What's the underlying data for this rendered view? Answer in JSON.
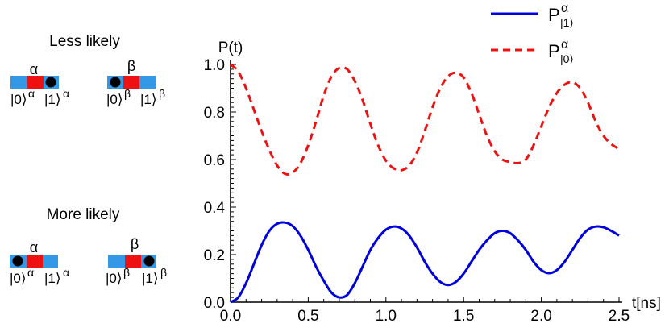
{
  "left_panel": {
    "less_likely": {
      "label": "Less likely",
      "alpha_diagram": {
        "greek": "α",
        "state0": "|0⟩",
        "state1": "|1⟩",
        "sup": "α",
        "ball_on": "1"
      },
      "beta_diagram": {
        "greek": "β",
        "state0": "|0⟩",
        "state1": "|1⟩",
        "sup": "β",
        "ball_on": "0"
      }
    },
    "more_likely": {
      "label": "More likely",
      "alpha_diagram": {
        "greek": "α",
        "state0": "|0⟩",
        "state1": "|1⟩",
        "sup": "α",
        "ball_on": "0"
      },
      "beta_diagram": {
        "greek": "β",
        "state0": "|0⟩",
        "state1": "|1⟩",
        "sup": "β",
        "ball_on": "1"
      }
    },
    "colors": {
      "wire": "#3399e6",
      "site": "#ee1111",
      "ball": "#000000"
    }
  },
  "chart_data": {
    "type": "line",
    "ylabel": "P(t)",
    "xlabel": "t[ns]",
    "xlim": [
      0,
      2.5
    ],
    "ylim": [
      0,
      1.0
    ],
    "x_ticks": [
      "0.0",
      "0.5",
      "1.0",
      "1.5",
      "2.0",
      "2.5"
    ],
    "x_tick_values": [
      0,
      0.5,
      1.0,
      1.5,
      2.0,
      2.5
    ],
    "y_ticks": [
      "0.0",
      "0.2",
      "0.4",
      "0.6",
      "0.8",
      "1.0"
    ],
    "y_tick_values": [
      0,
      0.2,
      0.4,
      0.6,
      0.8,
      1.0
    ],
    "legend_position": "top-right",
    "series": [
      {
        "name": "P|1⟩α",
        "legend_main": "P",
        "legend_sup": "α",
        "legend_sub": "|1⟩",
        "color": "#0000dd",
        "style": "solid",
        "points": [
          [
            0,
            0
          ],
          [
            0.05,
            0.02
          ],
          [
            0.1,
            0.08
          ],
          [
            0.15,
            0.16
          ],
          [
            0.2,
            0.24
          ],
          [
            0.25,
            0.3
          ],
          [
            0.3,
            0.33
          ],
          [
            0.35,
            0.335
          ],
          [
            0.4,
            0.32
          ],
          [
            0.45,
            0.28
          ],
          [
            0.5,
            0.22
          ],
          [
            0.55,
            0.15
          ],
          [
            0.6,
            0.09
          ],
          [
            0.65,
            0.04
          ],
          [
            0.7,
            0.02
          ],
          [
            0.75,
            0.03
          ],
          [
            0.8,
            0.08
          ],
          [
            0.85,
            0.15
          ],
          [
            0.9,
            0.22
          ],
          [
            0.95,
            0.27
          ],
          [
            1.0,
            0.305
          ],
          [
            1.05,
            0.318
          ],
          [
            1.1,
            0.31
          ],
          [
            1.15,
            0.28
          ],
          [
            1.2,
            0.23
          ],
          [
            1.25,
            0.17
          ],
          [
            1.3,
            0.12
          ],
          [
            1.35,
            0.085
          ],
          [
            1.4,
            0.072
          ],
          [
            1.45,
            0.085
          ],
          [
            1.5,
            0.12
          ],
          [
            1.55,
            0.17
          ],
          [
            1.6,
            0.22
          ],
          [
            1.65,
            0.26
          ],
          [
            1.7,
            0.29
          ],
          [
            1.75,
            0.3
          ],
          [
            1.8,
            0.29
          ],
          [
            1.85,
            0.26
          ],
          [
            1.9,
            0.22
          ],
          [
            1.95,
            0.17
          ],
          [
            2.0,
            0.135
          ],
          [
            2.05,
            0.122
          ],
          [
            2.1,
            0.135
          ],
          [
            2.15,
            0.17
          ],
          [
            2.2,
            0.22
          ],
          [
            2.25,
            0.27
          ],
          [
            2.3,
            0.305
          ],
          [
            2.35,
            0.318
          ],
          [
            2.4,
            0.315
          ],
          [
            2.45,
            0.3
          ],
          [
            2.5,
            0.28
          ]
        ]
      },
      {
        "name": "P|0⟩α",
        "legend_main": "P",
        "legend_sup": "α",
        "legend_sub": "|0⟩",
        "color": "#ee1111",
        "style": "dashed",
        "points": [
          [
            0,
            1.0
          ],
          [
            0.05,
            0.97
          ],
          [
            0.1,
            0.9
          ],
          [
            0.15,
            0.81
          ],
          [
            0.2,
            0.72
          ],
          [
            0.25,
            0.64
          ],
          [
            0.3,
            0.575
          ],
          [
            0.35,
            0.54
          ],
          [
            0.4,
            0.545
          ],
          [
            0.45,
            0.585
          ],
          [
            0.5,
            0.66
          ],
          [
            0.55,
            0.76
          ],
          [
            0.6,
            0.87
          ],
          [
            0.65,
            0.95
          ],
          [
            0.7,
            0.985
          ],
          [
            0.75,
            0.98
          ],
          [
            0.8,
            0.93
          ],
          [
            0.85,
            0.85
          ],
          [
            0.9,
            0.75
          ],
          [
            0.95,
            0.66
          ],
          [
            1.0,
            0.595
          ],
          [
            1.05,
            0.563
          ],
          [
            1.1,
            0.555
          ],
          [
            1.15,
            0.575
          ],
          [
            1.2,
            0.63
          ],
          [
            1.25,
            0.72
          ],
          [
            1.3,
            0.82
          ],
          [
            1.35,
            0.9
          ],
          [
            1.4,
            0.95
          ],
          [
            1.45,
            0.965
          ],
          [
            1.5,
            0.945
          ],
          [
            1.55,
            0.88
          ],
          [
            1.6,
            0.79
          ],
          [
            1.65,
            0.7
          ],
          [
            1.7,
            0.635
          ],
          [
            1.75,
            0.6
          ],
          [
            1.8,
            0.59
          ],
          [
            1.85,
            0.585
          ],
          [
            1.9,
            0.6
          ],
          [
            1.95,
            0.66
          ],
          [
            2.0,
            0.74
          ],
          [
            2.05,
            0.82
          ],
          [
            2.1,
            0.88
          ],
          [
            2.15,
            0.915
          ],
          [
            2.2,
            0.925
          ],
          [
            2.25,
            0.9
          ],
          [
            2.3,
            0.84
          ],
          [
            2.35,
            0.76
          ],
          [
            2.4,
            0.7
          ],
          [
            2.45,
            0.665
          ],
          [
            2.5,
            0.645
          ]
        ]
      }
    ]
  }
}
